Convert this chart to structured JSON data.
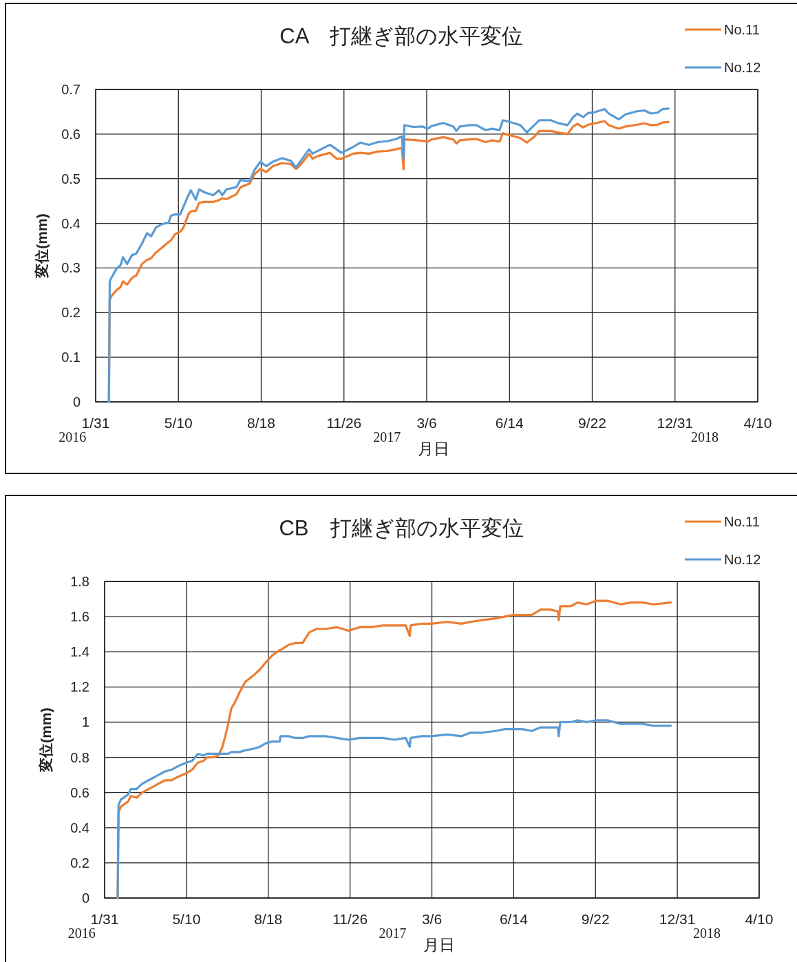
{
  "chart_data": [
    {
      "type": "line",
      "title": "CA　打継ぎ部の水平変位",
      "xlabel": "月日",
      "ylabel": "変位(mm)",
      "grid": true,
      "legend": "top right",
      "xlim": [
        "2016-01-31",
        "2018-04-10"
      ],
      "xticks": [
        {
          "value": "2016-01-31",
          "label": "1/31"
        },
        {
          "value": "2016-05-10",
          "label": "5/10"
        },
        {
          "value": "2016-08-18",
          "label": "8/18"
        },
        {
          "value": "2016-11-26",
          "label": "11/26"
        },
        {
          "value": "2017-03-06",
          "label": "3/6"
        },
        {
          "value": "2017-06-14",
          "label": "6/14"
        },
        {
          "value": "2017-09-22",
          "label": "9/22"
        },
        {
          "value": "2017-12-31",
          "label": "12/31"
        },
        {
          "value": "2018-04-10",
          "label": "4/10"
        }
      ],
      "ylim": [
        0,
        0.7
      ],
      "yticks": [
        0,
        0.1,
        0.2,
        0.3,
        0.4,
        0.5,
        0.6,
        0.7
      ],
      "annotations": [
        "2016",
        "2017",
        "2018"
      ],
      "x": [
        "2016-02-16",
        "2016-02-17",
        "2016-02-19",
        "2016-02-25",
        "2016-03-01",
        "2016-03-04",
        "2016-03-09",
        "2016-03-15",
        "2016-03-20",
        "2016-03-27",
        "2016-04-02",
        "2016-04-07",
        "2016-04-13",
        "2016-04-21",
        "2016-04-28",
        "2016-05-01",
        "2016-05-06",
        "2016-05-12",
        "2016-05-16",
        "2016-05-22",
        "2016-05-25",
        "2016-05-31",
        "2016-06-04",
        "2016-06-10",
        "2016-06-21",
        "2016-06-28",
        "2016-07-02",
        "2016-07-07",
        "2016-07-19",
        "2016-07-24",
        "2016-08-04",
        "2016-08-10",
        "2016-08-17",
        "2016-08-24",
        "2016-09-01",
        "2016-09-12",
        "2016-09-23",
        "2016-09-29",
        "2016-10-04",
        "2016-10-15",
        "2016-10-19",
        "2016-10-26",
        "2016-11-09",
        "2016-11-17",
        "2016-11-23",
        "2016-12-07",
        "2016-12-16",
        "2016-12-26",
        "2017-01-06",
        "2017-01-17",
        "2017-01-28",
        "2017-02-04",
        "2017-02-06",
        "2017-02-07",
        "2017-02-18",
        "2017-03-01",
        "2017-03-07",
        "2017-03-12",
        "2017-03-26",
        "2017-04-07",
        "2017-04-11",
        "2017-04-15",
        "2017-04-26",
        "2017-05-05",
        "2017-05-16",
        "2017-05-24",
        "2017-06-02",
        "2017-06-06",
        "2017-06-13",
        "2017-06-22",
        "2017-06-27",
        "2017-07-05",
        "2017-07-14",
        "2017-07-20",
        "2017-08-03",
        "2017-08-11",
        "2017-08-23",
        "2017-08-30",
        "2017-09-04",
        "2017-09-11",
        "2017-09-17",
        "2017-09-25",
        "2017-10-07",
        "2017-10-12",
        "2017-10-24",
        "2017-11-01",
        "2017-11-15",
        "2017-11-24",
        "2017-12-02",
        "2017-12-10",
        "2017-12-16",
        "2017-12-23"
      ],
      "series": [
        {
          "name": "No.11",
          "color": "#ed7d31",
          "values": [
            0,
            0.228,
            0.237,
            0.25,
            0.257,
            0.27,
            0.263,
            0.278,
            0.283,
            0.309,
            0.318,
            0.322,
            0.335,
            0.347,
            0.358,
            0.362,
            0.376,
            0.381,
            0.39,
            0.42,
            0.427,
            0.428,
            0.446,
            0.448,
            0.448,
            0.452,
            0.456,
            0.454,
            0.465,
            0.481,
            0.489,
            0.51,
            0.522,
            0.515,
            0.528,
            0.535,
            0.533,
            0.522,
            0.53,
            0.556,
            0.545,
            0.551,
            0.558,
            0.545,
            0.545,
            0.556,
            0.558,
            0.556,
            0.561,
            0.562,
            0.566,
            0.569,
            0.521,
            0.588,
            0.587,
            0.585,
            0.583,
            0.588,
            0.593,
            0.588,
            0.579,
            0.586,
            0.588,
            0.589,
            0.582,
            0.586,
            0.583,
            0.602,
            0.598,
            0.594,
            0.591,
            0.581,
            0.594,
            0.607,
            0.607,
            0.604,
            0.6,
            0.617,
            0.623,
            0.615,
            0.621,
            0.624,
            0.629,
            0.62,
            0.612,
            0.617,
            0.621,
            0.624,
            0.62,
            0.621,
            0.626,
            0.627
          ]
        },
        {
          "name": "No.12",
          "color": "#5b9bd5",
          "values": [
            0,
            0.27,
            0.278,
            0.298,
            0.306,
            0.324,
            0.309,
            0.329,
            0.332,
            0.355,
            0.378,
            0.371,
            0.391,
            0.399,
            0.401,
            0.417,
            0.42,
            0.42,
            0.437,
            0.463,
            0.474,
            0.453,
            0.476,
            0.47,
            0.463,
            0.474,
            0.463,
            0.476,
            0.481,
            0.497,
            0.494,
            0.52,
            0.538,
            0.528,
            0.538,
            0.546,
            0.54,
            0.525,
            0.538,
            0.566,
            0.556,
            0.563,
            0.576,
            0.566,
            0.558,
            0.571,
            0.581,
            0.576,
            0.582,
            0.584,
            0.589,
            0.595,
            0.545,
            0.62,
            0.616,
            0.617,
            0.612,
            0.618,
            0.625,
            0.617,
            0.607,
            0.617,
            0.62,
            0.62,
            0.609,
            0.612,
            0.609,
            0.631,
            0.628,
            0.623,
            0.62,
            0.604,
            0.62,
            0.631,
            0.631,
            0.625,
            0.62,
            0.638,
            0.646,
            0.638,
            0.647,
            0.649,
            0.656,
            0.646,
            0.633,
            0.644,
            0.651,
            0.653,
            0.646,
            0.648,
            0.656,
            0.657
          ]
        }
      ]
    },
    {
      "type": "line",
      "title": "CB　打継ぎ部の水平変位",
      "xlabel": "月日",
      "ylabel": "変位(mm)",
      "grid": true,
      "legend": "top right",
      "xlim": [
        "2016-01-31",
        "2018-04-10"
      ],
      "xticks": [
        {
          "value": "2016-01-31",
          "label": "1/31"
        },
        {
          "value": "2016-05-10",
          "label": "5/10"
        },
        {
          "value": "2016-08-18",
          "label": "8/18"
        },
        {
          "value": "2016-11-26",
          "label": "11/26"
        },
        {
          "value": "2017-03-06",
          "label": "3/6"
        },
        {
          "value": "2017-06-14",
          "label": "6/14"
        },
        {
          "value": "2017-09-22",
          "label": "9/22"
        },
        {
          "value": "2017-12-31",
          "label": "12/31"
        },
        {
          "value": "2018-04-10",
          "label": "4/10"
        }
      ],
      "ylim": [
        0,
        1.8
      ],
      "yticks": [
        0,
        0.2,
        0.4,
        0.6,
        0.8,
        1,
        1.2,
        1.4,
        1.6,
        1.8
      ],
      "annotations": [
        "2016",
        "2017",
        "2018"
      ],
      "x": [
        "2016-02-16",
        "2016-02-17",
        "2016-02-20",
        "2016-02-29",
        "2016-03-03",
        "2016-03-10",
        "2016-03-17",
        "2016-03-25",
        "2016-04-02",
        "2016-04-14",
        "2016-04-22",
        "2016-04-30",
        "2016-05-10",
        "2016-05-17",
        "2016-05-24",
        "2016-05-31",
        "2016-06-04",
        "2016-06-11",
        "2016-06-18",
        "2016-06-23",
        "2016-06-27",
        "2016-06-30",
        "2016-07-04",
        "2016-07-08",
        "2016-07-14",
        "2016-07-21",
        "2016-08-01",
        "2016-08-08",
        "2016-08-15",
        "2016-08-23",
        "2016-09-01",
        "2016-09-02",
        "2016-09-12",
        "2016-09-20",
        "2016-09-29",
        "2016-10-07",
        "2016-10-16",
        "2016-10-27",
        "2016-11-10",
        "2016-11-24",
        "2016-12-08",
        "2016-12-22",
        "2017-01-05",
        "2017-01-19",
        "2017-02-02",
        "2017-02-07",
        "2017-02-08",
        "2017-02-21",
        "2017-03-05",
        "2017-03-25",
        "2017-04-11",
        "2017-04-22",
        "2017-05-06",
        "2017-05-23",
        "2017-06-03",
        "2017-06-14",
        "2017-06-25",
        "2017-07-06",
        "2017-07-17",
        "2017-07-29",
        "2017-08-07",
        "2017-08-08",
        "2017-08-10",
        "2017-08-23",
        "2017-08-31",
        "2017-09-11",
        "2017-09-23",
        "2017-10-07",
        "2017-10-15",
        "2017-10-23",
        "2017-11-04",
        "2017-11-18",
        "2017-12-02",
        "2017-12-23"
      ],
      "series": [
        {
          "name": "No.11",
          "color": "#ed7d31",
          "values": [
            0,
            0.49,
            0.52,
            0.55,
            0.58,
            0.57,
            0.6,
            0.62,
            0.64,
            0.67,
            0.67,
            0.69,
            0.71,
            0.73,
            0.77,
            0.78,
            0.8,
            0.8,
            0.81,
            0.86,
            0.93,
            0.99,
            1.08,
            1.11,
            1.17,
            1.23,
            1.27,
            1.3,
            1.34,
            1.38,
            1.41,
            1.41,
            1.44,
            1.45,
            1.45,
            1.51,
            1.53,
            1.53,
            1.54,
            1.52,
            1.54,
            1.54,
            1.55,
            1.55,
            1.55,
            1.49,
            1.55,
            1.56,
            1.56,
            1.57,
            1.56,
            1.57,
            1.58,
            1.59,
            1.6,
            1.61,
            1.61,
            1.61,
            1.64,
            1.64,
            1.63,
            1.58,
            1.66,
            1.66,
            1.68,
            1.67,
            1.69,
            1.69,
            1.68,
            1.67,
            1.68,
            1.68,
            1.67,
            1.68
          ]
        },
        {
          "name": "No.12",
          "color": "#5b9bd5",
          "values": [
            0,
            0.53,
            0.56,
            0.59,
            0.62,
            0.62,
            0.65,
            0.67,
            0.69,
            0.72,
            0.73,
            0.75,
            0.77,
            0.78,
            0.82,
            0.81,
            0.82,
            0.82,
            0.82,
            0.82,
            0.82,
            0.82,
            0.83,
            0.83,
            0.83,
            0.84,
            0.85,
            0.86,
            0.88,
            0.89,
            0.89,
            0.92,
            0.92,
            0.91,
            0.91,
            0.92,
            0.92,
            0.92,
            0.91,
            0.9,
            0.91,
            0.91,
            0.91,
            0.9,
            0.91,
            0.86,
            0.91,
            0.92,
            0.92,
            0.93,
            0.92,
            0.94,
            0.94,
            0.95,
            0.96,
            0.96,
            0.96,
            0.95,
            0.97,
            0.97,
            0.97,
            0.92,
            1,
            1,
            1.01,
            1,
            1.01,
            1.01,
            1,
            0.99,
            0.99,
            0.99,
            0.98,
            0.98
          ]
        }
      ]
    }
  ]
}
